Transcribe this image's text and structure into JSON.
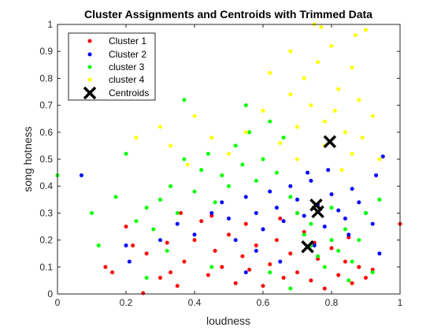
{
  "chart_data": {
    "type": "scatter",
    "title": "Cluster Assignments and Centroids with Trimmed Data",
    "xlabel": "loudness",
    "ylabel": "song hotness",
    "xlim": [
      0,
      1
    ],
    "ylim": [
      0,
      1
    ],
    "xticks": [
      "0",
      "0.2",
      "0.4",
      "0.6",
      "0.8",
      "1"
    ],
    "xtick_values": [
      0,
      0.2,
      0.4,
      0.6,
      0.8,
      1
    ],
    "yticks": [
      "0",
      "0.1",
      "0.2",
      "0.3",
      "0.4",
      "0.5",
      "0.6",
      "0.7",
      "0.8",
      "0.9",
      "1"
    ],
    "ytick_values": [
      0,
      0.1,
      0.2,
      0.3,
      0.4,
      0.5,
      0.6,
      0.7,
      0.8,
      0.9,
      1
    ],
    "grid": false,
    "legend_position": "top-left",
    "series": [
      {
        "name": "Cluster 1",
        "color": "#ff0000",
        "marker": "dot",
        "points": [
          [
            0.25,
            0.003
          ],
          [
            0.14,
            0.1
          ],
          [
            0.16,
            0.08
          ],
          [
            0.2,
            0.25
          ],
          [
            0.22,
            0.18
          ],
          [
            0.26,
            0.15
          ],
          [
            0.3,
            0.06
          ],
          [
            0.32,
            0.19
          ],
          [
            0.35,
            0.03
          ],
          [
            0.37,
            0.12
          ],
          [
            0.4,
            0.2
          ],
          [
            0.42,
            0.27
          ],
          [
            0.44,
            0.07
          ],
          [
            0.46,
            0.16
          ],
          [
            0.48,
            0.1
          ],
          [
            0.5,
            0.22
          ],
          [
            0.52,
            0.04
          ],
          [
            0.54,
            0.14
          ],
          [
            0.56,
            0.09
          ],
          [
            0.58,
            0.18
          ],
          [
            0.6,
            0.03
          ],
          [
            0.62,
            0.11
          ],
          [
            0.64,
            0.2
          ],
          [
            0.66,
            0.06
          ],
          [
            0.68,
            0.15
          ],
          [
            0.7,
            0.08
          ],
          [
            0.72,
            0.23
          ],
          [
            0.74,
            0.05
          ],
          [
            0.76,
            0.13
          ],
          [
            0.78,
            0.02
          ],
          [
            0.8,
            0.17
          ],
          [
            0.82,
            0.07
          ],
          [
            0.84,
            0.12
          ],
          [
            0.86,
            0.04
          ],
          [
            0.88,
            0.1
          ],
          [
            0.9,
            0.06
          ],
          [
            0.92,
            0.09
          ],
          [
            1.0,
            0.26
          ],
          [
            0.36,
            0.3
          ],
          [
            0.33,
            0.08
          ],
          [
            0.45,
            0.29
          ],
          [
            0.55,
            0.26
          ],
          [
            0.65,
            0.28
          ],
          [
            0.7,
            0.3
          ],
          [
            0.75,
            0.19
          ],
          [
            0.85,
            0.21
          ]
        ]
      },
      {
        "name": "Cluster 2",
        "color": "#0000ff",
        "marker": "dot",
        "points": [
          [
            0.07,
            0.44
          ],
          [
            0.2,
            0.18
          ],
          [
            0.21,
            0.12
          ],
          [
            0.3,
            0.2
          ],
          [
            0.35,
            0.26
          ],
          [
            0.4,
            0.22
          ],
          [
            0.45,
            0.3
          ],
          [
            0.48,
            0.34
          ],
          [
            0.5,
            0.28
          ],
          [
            0.52,
            0.2
          ],
          [
            0.55,
            0.36
          ],
          [
            0.58,
            0.3
          ],
          [
            0.6,
            0.24
          ],
          [
            0.62,
            0.38
          ],
          [
            0.64,
            0.32
          ],
          [
            0.66,
            0.27
          ],
          [
            0.68,
            0.4
          ],
          [
            0.7,
            0.35
          ],
          [
            0.72,
            0.29
          ],
          [
            0.74,
            0.42
          ],
          [
            0.76,
            0.33
          ],
          [
            0.78,
            0.25
          ],
          [
            0.8,
            0.37
          ],
          [
            0.82,
            0.31
          ],
          [
            0.84,
            0.28
          ],
          [
            0.86,
            0.39
          ],
          [
            0.88,
            0.34
          ],
          [
            0.9,
            0.3
          ],
          [
            0.92,
            0.26
          ],
          [
            0.94,
            0.15
          ],
          [
            0.95,
            0.51
          ],
          [
            0.93,
            0.44
          ],
          [
            0.58,
            0.16
          ],
          [
            0.65,
            0.12
          ],
          [
            0.75,
            0.18
          ],
          [
            0.85,
            0.22
          ],
          [
            0.55,
            0.08
          ],
          [
            0.73,
            0.45
          ],
          [
            0.79,
            0.46
          ]
        ]
      },
      {
        "name": "cluster 3",
        "color": "#00ff00",
        "marker": "dot",
        "points": [
          [
            0.0,
            0.44
          ],
          [
            0.1,
            0.3
          ],
          [
            0.12,
            0.18
          ],
          [
            0.17,
            0.36
          ],
          [
            0.23,
            0.27
          ],
          [
            0.26,
            0.32
          ],
          [
            0.28,
            0.24
          ],
          [
            0.3,
            0.35
          ],
          [
            0.33,
            0.4
          ],
          [
            0.35,
            0.3
          ],
          [
            0.37,
            0.5
          ],
          [
            0.4,
            0.38
          ],
          [
            0.42,
            0.46
          ],
          [
            0.44,
            0.52
          ],
          [
            0.46,
            0.34
          ],
          [
            0.48,
            0.44
          ],
          [
            0.5,
            0.4
          ],
          [
            0.52,
            0.55
          ],
          [
            0.54,
            0.48
          ],
          [
            0.56,
            0.6
          ],
          [
            0.58,
            0.42
          ],
          [
            0.6,
            0.5
          ],
          [
            0.62,
            0.64
          ],
          [
            0.64,
            0.45
          ],
          [
            0.66,
            0.58
          ],
          [
            0.68,
            0.36
          ],
          [
            0.7,
            0.3
          ],
          [
            0.72,
            0.22
          ],
          [
            0.74,
            0.18
          ],
          [
            0.76,
            0.14
          ],
          [
            0.78,
            0.1
          ],
          [
            0.8,
            0.2
          ],
          [
            0.82,
            0.16
          ],
          [
            0.84,
            0.24
          ],
          [
            0.86,
            0.12
          ],
          [
            0.88,
            0.2
          ],
          [
            0.9,
            0.3
          ],
          [
            0.92,
            0.08
          ],
          [
            0.94,
            0.35
          ],
          [
            0.37,
            0.72
          ],
          [
            0.55,
            0.7
          ],
          [
            0.2,
            0.52
          ],
          [
            0.26,
            0.06
          ],
          [
            0.32,
            0.16
          ],
          [
            0.45,
            0.1
          ],
          [
            0.62,
            0.08
          ],
          [
            0.68,
            0.02
          ],
          [
            0.74,
            0.26
          ],
          [
            0.8,
            0.32
          ],
          [
            0.85,
            0.05
          ]
        ]
      },
      {
        "name": "cluster 4",
        "color": "#ffff00",
        "marker": "dot",
        "points": [
          [
            0.23,
            0.58
          ],
          [
            0.3,
            0.62
          ],
          [
            0.33,
            0.55
          ],
          [
            0.38,
            0.48
          ],
          [
            0.4,
            0.66
          ],
          [
            0.45,
            0.58
          ],
          [
            0.5,
            0.52
          ],
          [
            0.55,
            0.6
          ],
          [
            0.6,
            0.68
          ],
          [
            0.65,
            0.56
          ],
          [
            0.68,
            0.74
          ],
          [
            0.7,
            0.62
          ],
          [
            0.72,
            0.8
          ],
          [
            0.74,
            0.7
          ],
          [
            0.76,
            0.86
          ],
          [
            0.78,
            0.64
          ],
          [
            0.8,
            0.92
          ],
          [
            0.82,
            0.76
          ],
          [
            0.84,
            0.6
          ],
          [
            0.86,
            0.84
          ],
          [
            0.88,
            0.72
          ],
          [
            0.9,
            0.98
          ],
          [
            0.92,
            0.66
          ],
          [
            0.94,
            0.5
          ],
          [
            0.75,
            1.0
          ],
          [
            0.77,
            0.99
          ],
          [
            0.87,
            0.96
          ],
          [
            0.62,
            0.82
          ],
          [
            0.68,
            0.9
          ],
          [
            0.83,
            0.46
          ],
          [
            0.86,
            0.52
          ],
          [
            0.7,
            0.5
          ],
          [
            0.78,
            0.55
          ],
          [
            0.89,
            0.58
          ],
          [
            0.81,
            0.68
          ]
        ]
      },
      {
        "name": "Centroids",
        "color": "#000000",
        "marker": "x",
        "points": [
          [
            0.795,
            0.565
          ],
          [
            0.755,
            0.33
          ],
          [
            0.76,
            0.305
          ],
          [
            0.73,
            0.175
          ]
        ]
      }
    ]
  }
}
